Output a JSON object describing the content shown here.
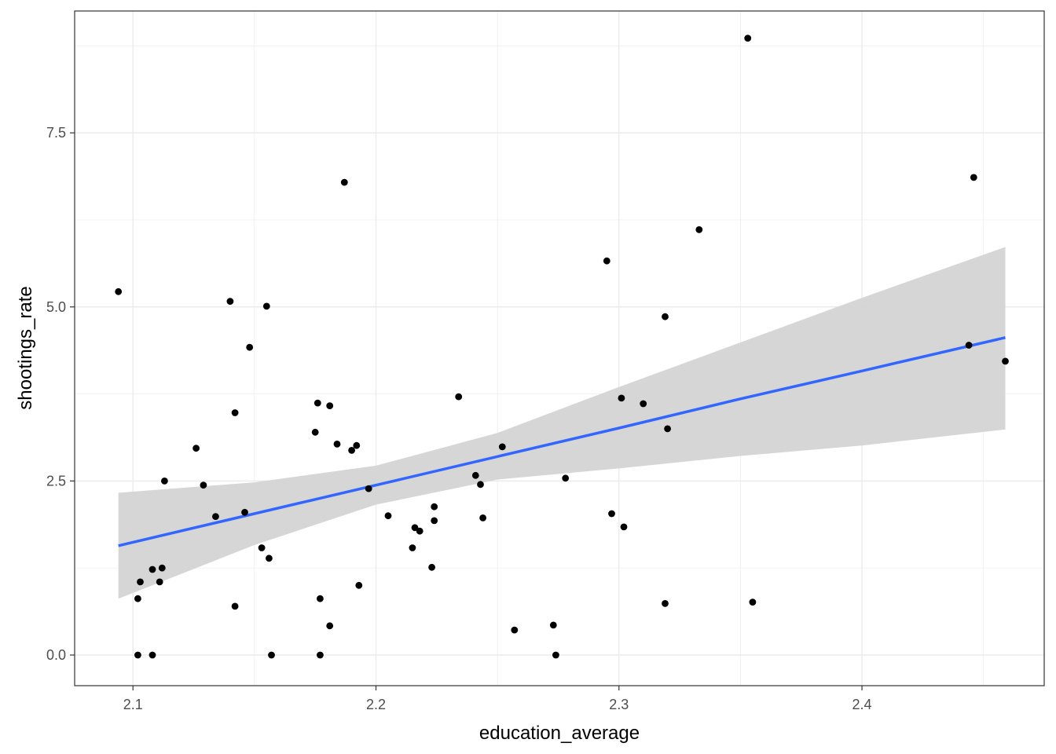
{
  "chart_data": {
    "type": "scatter",
    "title": "",
    "xlabel": "education_average",
    "ylabel": "shootings_rate",
    "xlim": [
      2.076,
      2.475
    ],
    "ylim": [
      -0.44,
      9.25
    ],
    "x_ticks": [
      2.1,
      2.2,
      2.3,
      2.4
    ],
    "x_tick_labels": [
      "2.1",
      "2.2",
      "2.3",
      "2.4"
    ],
    "y_ticks": [
      0.0,
      2.5,
      5.0,
      7.5
    ],
    "y_tick_labels": [
      "0.0",
      "2.5",
      "5.0",
      "7.5"
    ],
    "grid": true,
    "legend": "none",
    "colors": {
      "points": "#000000",
      "fit_line": "#3366ff",
      "ribbon": "#d4d4d4",
      "grid": "#ebebeb",
      "panel_border": "#333333"
    },
    "points": [
      {
        "x": 2.094,
        "y": 5.22
      },
      {
        "x": 2.102,
        "y": 0.81
      },
      {
        "x": 2.102,
        "y": 0.0
      },
      {
        "x": 2.103,
        "y": 1.05
      },
      {
        "x": 2.108,
        "y": 1.23
      },
      {
        "x": 2.108,
        "y": 0.0
      },
      {
        "x": 2.111,
        "y": 1.05
      },
      {
        "x": 2.112,
        "y": 1.25
      },
      {
        "x": 2.113,
        "y": 2.5
      },
      {
        "x": 2.126,
        "y": 2.97
      },
      {
        "x": 2.129,
        "y": 2.44
      },
      {
        "x": 2.134,
        "y": 1.99
      },
      {
        "x": 2.14,
        "y": 5.08
      },
      {
        "x": 2.142,
        "y": 3.48
      },
      {
        "x": 2.142,
        "y": 0.7
      },
      {
        "x": 2.146,
        "y": 2.05
      },
      {
        "x": 2.148,
        "y": 4.42
      },
      {
        "x": 2.153,
        "y": 1.54
      },
      {
        "x": 2.155,
        "y": 5.01
      },
      {
        "x": 2.156,
        "y": 1.39
      },
      {
        "x": 2.157,
        "y": 0.0
      },
      {
        "x": 2.175,
        "y": 3.2
      },
      {
        "x": 2.176,
        "y": 3.62
      },
      {
        "x": 2.177,
        "y": 0.81
      },
      {
        "x": 2.177,
        "y": 0.0
      },
      {
        "x": 2.181,
        "y": 0.42
      },
      {
        "x": 2.181,
        "y": 3.58
      },
      {
        "x": 2.184,
        "y": 3.03
      },
      {
        "x": 2.187,
        "y": 6.79
      },
      {
        "x": 2.19,
        "y": 2.94
      },
      {
        "x": 2.192,
        "y": 3.01
      },
      {
        "x": 2.193,
        "y": 1.0
      },
      {
        "x": 2.197,
        "y": 2.39
      },
      {
        "x": 2.205,
        "y": 2.0
      },
      {
        "x": 2.215,
        "y": 1.54
      },
      {
        "x": 2.216,
        "y": 1.83
      },
      {
        "x": 2.218,
        "y": 1.78
      },
      {
        "x": 2.223,
        "y": 1.26
      },
      {
        "x": 2.224,
        "y": 1.93
      },
      {
        "x": 2.224,
        "y": 2.13
      },
      {
        "x": 2.234,
        "y": 3.71
      },
      {
        "x": 2.241,
        "y": 2.58
      },
      {
        "x": 2.243,
        "y": 2.45
      },
      {
        "x": 2.244,
        "y": 1.97
      },
      {
        "x": 2.252,
        "y": 2.99
      },
      {
        "x": 2.257,
        "y": 0.36
      },
      {
        "x": 2.273,
        "y": 0.43
      },
      {
        "x": 2.274,
        "y": 0.0
      },
      {
        "x": 2.278,
        "y": 2.54
      },
      {
        "x": 2.295,
        "y": 5.66
      },
      {
        "x": 2.297,
        "y": 2.03
      },
      {
        "x": 2.301,
        "y": 3.69
      },
      {
        "x": 2.302,
        "y": 1.84
      },
      {
        "x": 2.31,
        "y": 3.61
      },
      {
        "x": 2.319,
        "y": 0.74
      },
      {
        "x": 2.319,
        "y": 4.86
      },
      {
        "x": 2.32,
        "y": 3.25
      },
      {
        "x": 2.333,
        "y": 6.11
      },
      {
        "x": 2.353,
        "y": 8.86
      },
      {
        "x": 2.355,
        "y": 0.76
      },
      {
        "x": 2.444,
        "y": 4.45
      },
      {
        "x": 2.446,
        "y": 6.86
      },
      {
        "x": 2.459,
        "y": 4.22
      }
    ],
    "fit": {
      "method": "linear",
      "x": [
        2.094,
        2.15,
        2.2,
        2.25,
        2.3,
        2.35,
        2.4,
        2.459
      ],
      "y": [
        1.57,
        2.03,
        2.44,
        2.85,
        3.26,
        3.68,
        4.08,
        4.56
      ],
      "lower": [
        0.81,
        1.58,
        2.16,
        2.52,
        2.68,
        2.86,
        3.01,
        3.24
      ],
      "upper": [
        2.33,
        2.48,
        2.72,
        3.19,
        3.85,
        4.49,
        5.13,
        5.86
      ]
    }
  }
}
